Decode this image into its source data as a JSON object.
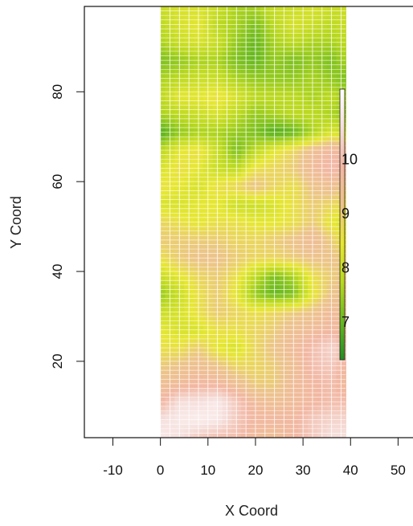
{
  "chart_data": {
    "type": "heatmap",
    "title": "",
    "xlabel": "X Coord",
    "ylabel": "Y Coord",
    "xlim": [
      -16,
      55
    ],
    "ylim": [
      3,
      99
    ],
    "x_ticks": [
      -10,
      0,
      10,
      20,
      30,
      40,
      50
    ],
    "y_ticks": [
      20,
      40,
      60,
      80
    ],
    "data_extent": {
      "x": [
        0,
        39
      ],
      "y": [
        3,
        99
      ]
    },
    "colorscale": {
      "min": 6.3,
      "max": 11.3,
      "ticks": [
        7,
        8,
        9,
        10
      ],
      "colors": [
        "#238b23",
        "#67b820",
        "#b8d81f",
        "#e7e733",
        "#ecc48a",
        "#f2b7a3",
        "#f5dfdc",
        "#ffffff"
      ]
    },
    "grid": "white lines over raster",
    "legend": "vertical colorbar at right, inside plot",
    "note_values": "Raster surface of a value ranging roughly 6.5–11 over the field; greener = lower, pinkish = higher. Values below are approximate readings per ~4×4 block (rows from y=3 at bottom to y=99 at top, columns from x=0 to x=39).",
    "grid_x": [
      0,
      4,
      8,
      12,
      16,
      20,
      24,
      28,
      32,
      36,
      39
    ],
    "grid_y": [
      3,
      7,
      11,
      15,
      19,
      23,
      27,
      31,
      35,
      39,
      43,
      47,
      51,
      55,
      59,
      63,
      67,
      71,
      75,
      79,
      83,
      87,
      91,
      95,
      99
    ],
    "z": [
      [
        10.8,
        10.6,
        10.2,
        10.0,
        10.0,
        9.6,
        9.4,
        9.8,
        10.2,
        10.6,
        10.6
      ],
      [
        10.6,
        10.8,
        10.9,
        10.8,
        10.2,
        9.8,
        9.8,
        9.8,
        10.2,
        10.4,
        10.4
      ],
      [
        9.8,
        10.6,
        10.6,
        10.8,
        10.2,
        9.6,
        9.4,
        9.6,
        9.8,
        10.0,
        10.0
      ],
      [
        9.4,
        9.6,
        9.8,
        9.8,
        9.4,
        9.0,
        9.0,
        9.6,
        9.8,
        10.0,
        9.6
      ],
      [
        9.0,
        9.2,
        9.4,
        9.2,
        8.8,
        8.8,
        9.0,
        9.4,
        10.0,
        10.2,
        9.8
      ],
      [
        8.6,
        8.6,
        9.0,
        8.4,
        8.2,
        8.8,
        9.2,
        9.6,
        10.0,
        10.4,
        10.0
      ],
      [
        8.4,
        8.2,
        8.2,
        8.6,
        8.6,
        8.8,
        9.0,
        9.4,
        9.6,
        9.8,
        9.6
      ],
      [
        8.0,
        8.2,
        8.6,
        9.0,
        8.8,
        8.6,
        8.8,
        9.0,
        9.2,
        9.6,
        9.4
      ],
      [
        7.4,
        8.0,
        8.6,
        9.0,
        8.4,
        7.4,
        7.0,
        7.2,
        8.4,
        9.2,
        9.4
      ],
      [
        8.0,
        8.4,
        8.8,
        9.0,
        8.6,
        7.8,
        7.2,
        7.6,
        8.6,
        9.0,
        9.2
      ],
      [
        8.6,
        9.0,
        9.2,
        9.2,
        9.0,
        8.8,
        8.8,
        9.0,
        9.2,
        9.2,
        9.0
      ],
      [
        9.0,
        9.0,
        9.0,
        9.0,
        8.8,
        8.8,
        9.0,
        9.2,
        9.6,
        9.0,
        8.4
      ],
      [
        8.8,
        8.6,
        8.4,
        8.6,
        8.6,
        8.4,
        8.4,
        8.6,
        9.0,
        8.4,
        8.2
      ],
      [
        8.2,
        8.2,
        8.4,
        8.4,
        8.0,
        8.0,
        8.2,
        8.6,
        9.0,
        8.8,
        8.6
      ],
      [
        8.6,
        8.4,
        8.2,
        8.6,
        8.8,
        9.2,
        8.8,
        8.6,
        9.2,
        9.4,
        9.0
      ],
      [
        8.2,
        8.6,
        8.4,
        8.0,
        7.8,
        8.6,
        8.8,
        9.0,
        9.6,
        10.0,
        9.8
      ],
      [
        7.8,
        8.4,
        8.6,
        8.0,
        7.2,
        7.8,
        8.4,
        8.8,
        9.4,
        9.8,
        9.6
      ],
      [
        6.8,
        7.4,
        7.6,
        7.6,
        7.4,
        7.2,
        6.8,
        7.0,
        7.6,
        8.2,
        8.0
      ],
      [
        7.6,
        7.8,
        8.0,
        8.2,
        7.8,
        7.4,
        7.6,
        7.8,
        7.8,
        7.6,
        7.4
      ],
      [
        7.8,
        8.4,
        8.4,
        8.6,
        8.2,
        7.8,
        7.8,
        7.8,
        7.6,
        7.8,
        7.6
      ],
      [
        7.6,
        7.8,
        8.0,
        8.0,
        7.6,
        7.4,
        7.4,
        7.4,
        7.6,
        7.4,
        7.2
      ],
      [
        7.2,
        7.4,
        7.6,
        7.6,
        7.2,
        7.0,
        7.4,
        7.2,
        7.4,
        7.2,
        7.6
      ],
      [
        7.6,
        8.0,
        8.2,
        8.0,
        7.4,
        7.0,
        7.6,
        7.8,
        7.6,
        7.6,
        7.8
      ],
      [
        7.8,
        8.2,
        8.4,
        7.8,
        7.6,
        7.2,
        7.8,
        8.2,
        8.0,
        7.8,
        8.0
      ],
      [
        8.0,
        8.2,
        8.2,
        8.0,
        7.6,
        7.6,
        8.0,
        8.0,
        8.2,
        8.0,
        8.0
      ]
    ]
  }
}
